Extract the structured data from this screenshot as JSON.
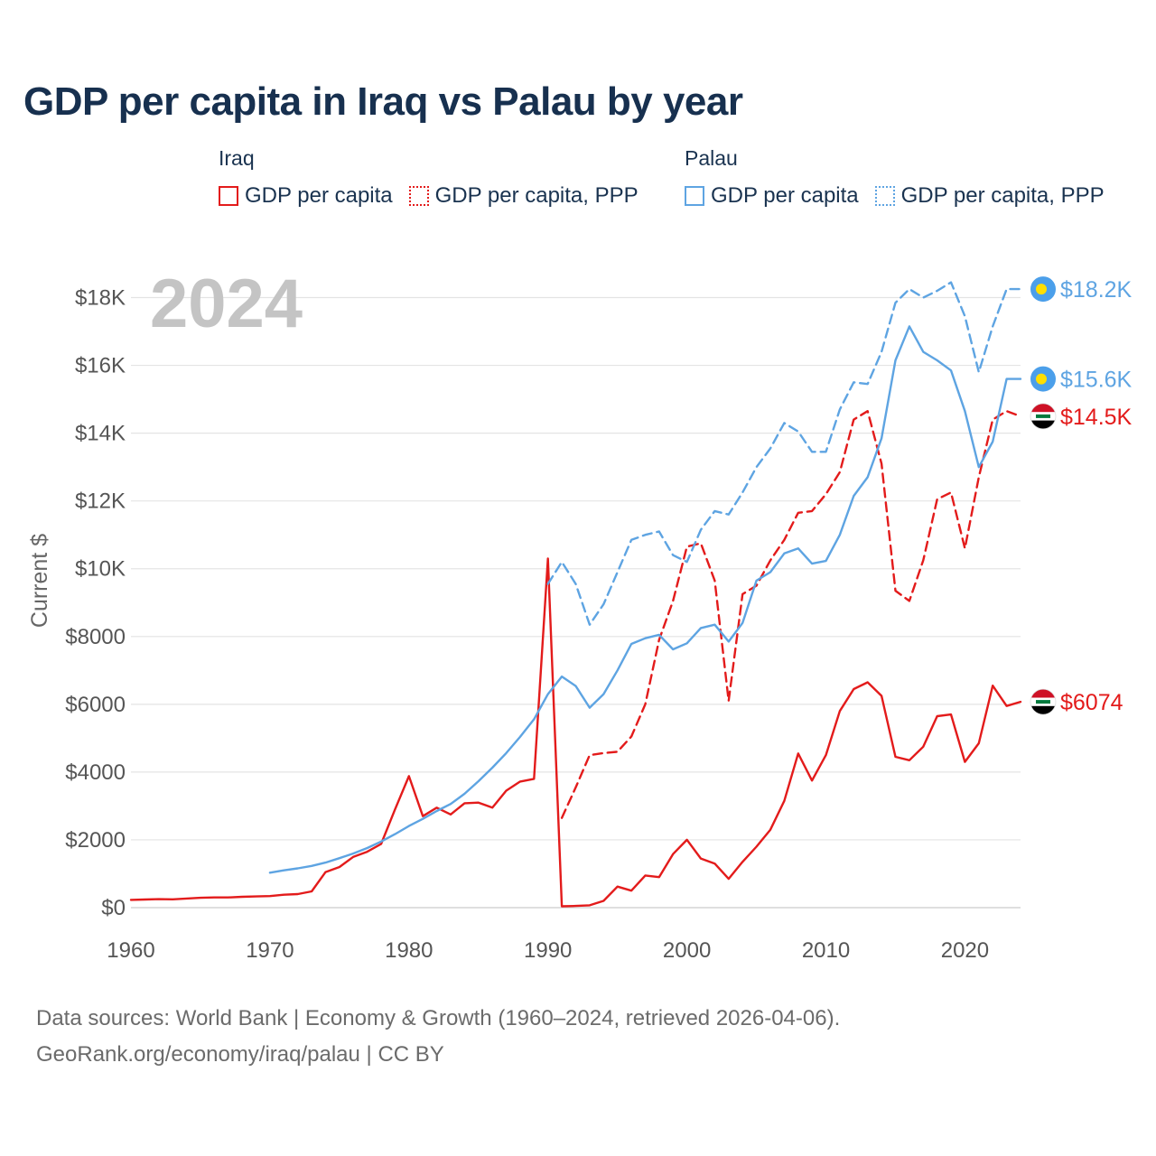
{
  "title": "GDP per capita in Iraq vs Palau by year",
  "legend": {
    "groups": [
      {
        "name": "Iraq",
        "items": [
          {
            "label": "GDP per capita",
            "color": "#e31b1b",
            "style": "solid"
          },
          {
            "label": "GDP per capita, PPP",
            "color": "#e31b1b",
            "style": "dotted"
          }
        ]
      },
      {
        "name": "Palau",
        "items": [
          {
            "label": "GDP per capita",
            "color": "#5ea4e2",
            "style": "solid"
          },
          {
            "label": "GDP per capita, PPP",
            "color": "#5ea4e2",
            "style": "dotted"
          }
        ]
      }
    ]
  },
  "footer": {
    "line1": "Data sources: World Bank | Economy & Growth (1960–2024, retrieved 2026-04-06).",
    "line2": "GeoRank.org/economy/iraq/palau | CC BY"
  },
  "chart_data": {
    "type": "line",
    "title": "GDP per capita in Iraq vs Palau by year",
    "year_label": "2024",
    "xlabel": "",
    "ylabel": "Current $",
    "xlim": [
      1960,
      2024
    ],
    "ylim": [
      0,
      19000
    ],
    "x_ticks": [
      1960,
      1970,
      1980,
      1990,
      2000,
      2010,
      2020
    ],
    "y_ticks": [
      0,
      2000,
      4000,
      6000,
      8000,
      10000,
      12000,
      14000,
      16000,
      18000
    ],
    "y_tick_labels": [
      "$0",
      "$2000",
      "$4000",
      "$6000",
      "$8000",
      "$10K",
      "$12K",
      "$14K",
      "$16K",
      "$18K"
    ],
    "grid": true,
    "series": [
      {
        "name": "Iraq GDP per capita",
        "color": "#e31b1b",
        "dash": "solid",
        "end_label": "$6074",
        "end_flag": "iraq",
        "x": [
          1960,
          1961,
          1962,
          1963,
          1964,
          1965,
          1966,
          1967,
          1968,
          1969,
          1970,
          1971,
          1972,
          1973,
          1974,
          1975,
          1976,
          1977,
          1978,
          1979,
          1980,
          1981,
          1982,
          1983,
          1984,
          1985,
          1986,
          1987,
          1988,
          1989,
          1990,
          1991,
          1992,
          1993,
          1994,
          1995,
          1996,
          1997,
          1998,
          1999,
          2000,
          2001,
          2002,
          2003,
          2004,
          2005,
          2006,
          2007,
          2008,
          2009,
          2010,
          2011,
          2012,
          2013,
          2014,
          2015,
          2016,
          2017,
          2018,
          2019,
          2020,
          2021,
          2022,
          2023,
          2024
        ],
        "y": [
          230,
          240,
          250,
          245,
          270,
          290,
          300,
          300,
          320,
          330,
          340,
          380,
          400,
          480,
          1050,
          1200,
          1500,
          1650,
          1880,
          2900,
          3880,
          2700,
          2950,
          2750,
          3080,
          3100,
          2950,
          3450,
          3720,
          3800,
          10300,
          40,
          50,
          70,
          200,
          620,
          500,
          950,
          900,
          1580,
          2000,
          1450,
          1300,
          850,
          1350,
          1800,
          2300,
          3150,
          4550,
          3750,
          4500,
          5800,
          6450,
          6650,
          6250,
          4450,
          4350,
          4750,
          5650,
          5700,
          4300,
          4850,
          6550,
          5950,
          6074
        ]
      },
      {
        "name": "Iraq GDP per capita, PPP",
        "color": "#e31b1b",
        "dash": "dashed",
        "end_label": "$14.5K",
        "end_flag": "iraq",
        "x": [
          1991,
          1992,
          1993,
          1994,
          1995,
          1996,
          1997,
          1998,
          1999,
          2000,
          2001,
          2002,
          2003,
          2004,
          2005,
          2006,
          2007,
          2008,
          2009,
          2010,
          2011,
          2012,
          2013,
          2014,
          2015,
          2016,
          2017,
          2018,
          2019,
          2020,
          2021,
          2022,
          2023,
          2024
        ],
        "y": [
          2650,
          3550,
          4500,
          4560,
          4600,
          5050,
          6000,
          7900,
          9050,
          10650,
          10750,
          9650,
          6100,
          9250,
          9500,
          10250,
          10850,
          11650,
          11700,
          12200,
          12850,
          14400,
          14650,
          13100,
          9350,
          9050,
          10250,
          12050,
          12250,
          10600,
          12700,
          14400,
          14650,
          14500
        ]
      },
      {
        "name": "Palau GDP per capita",
        "color": "#5ea4e2",
        "dash": "solid",
        "end_label": "$15.6K",
        "end_flag": "palau",
        "x": [
          1970,
          1971,
          1972,
          1973,
          1974,
          1975,
          1976,
          1977,
          1978,
          1979,
          1980,
          1981,
          1982,
          1983,
          1984,
          1985,
          1986,
          1987,
          1988,
          1989,
          1990,
          1991,
          1992,
          1993,
          1994,
          1995,
          1996,
          1997,
          1998,
          1999,
          2000,
          2001,
          2002,
          2003,
          2004,
          2005,
          2006,
          2007,
          2008,
          2009,
          2010,
          2011,
          2012,
          2013,
          2014,
          2015,
          2016,
          2017,
          2018,
          2019,
          2020,
          2021,
          2022,
          2023,
          2024
        ],
        "y": [
          1030,
          1100,
          1160,
          1230,
          1330,
          1460,
          1600,
          1760,
          1950,
          2170,
          2410,
          2620,
          2850,
          3060,
          3360,
          3730,
          4130,
          4560,
          5040,
          5560,
          6300,
          6820,
          6540,
          5900,
          6300,
          7000,
          7780,
          7950,
          8050,
          7620,
          7800,
          8250,
          8350,
          7850,
          8400,
          9650,
          9900,
          10450,
          10600,
          10150,
          10230,
          11000,
          12150,
          12700,
          13850,
          16150,
          17150,
          16400,
          16150,
          15850,
          14650,
          13000,
          13750,
          15600,
          15600
        ]
      },
      {
        "name": "Palau GDP per capita, PPP",
        "color": "#5ea4e2",
        "dash": "dashed",
        "end_label": "$18.2K",
        "end_flag": "palau",
        "x": [
          1990,
          1991,
          1992,
          1993,
          1994,
          1995,
          1996,
          1997,
          1998,
          1999,
          2000,
          2001,
          2002,
          2003,
          2004,
          2005,
          2006,
          2007,
          2008,
          2009,
          2010,
          2011,
          2012,
          2013,
          2014,
          2015,
          2016,
          2017,
          2018,
          2019,
          2020,
          2021,
          2022,
          2023,
          2024
        ],
        "y": [
          9550,
          10200,
          9550,
          8350,
          8950,
          9900,
          10850,
          11000,
          11100,
          10400,
          10200,
          11150,
          11700,
          11600,
          12250,
          13000,
          13550,
          14300,
          14050,
          13450,
          13450,
          14700,
          15500,
          15450,
          16400,
          17850,
          18250,
          18000,
          18200,
          18450,
          17450,
          15800,
          17150,
          18250,
          18250
        ]
      }
    ]
  }
}
